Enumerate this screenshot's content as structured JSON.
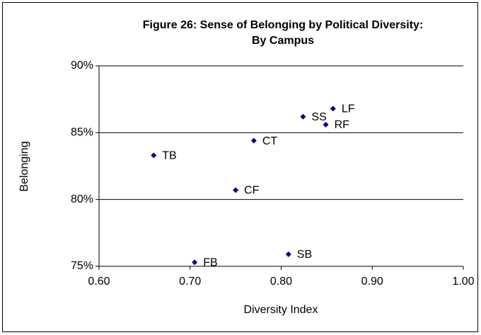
{
  "chart_data": {
    "type": "scatter",
    "title": [
      "Figure 26: Sense of Belonging by Political Diversity:",
      "By Campus"
    ],
    "x_label": "Diversity Index",
    "y_label": "Belonging",
    "labels": [
      "TB",
      "FB",
      "CF",
      "CT",
      "SB",
      "SS",
      "RF",
      "LF"
    ],
    "x": [
      0.66,
      0.705,
      0.75,
      0.77,
      0.808,
      0.824,
      0.849,
      0.857
    ],
    "values": [
      83.3,
      75.3,
      80.7,
      84.4,
      75.9,
      86.2,
      85.6,
      86.8
    ],
    "color": "#000080",
    "xlim": [
      0.6,
      1.0
    ],
    "xticks": [
      {
        "value": 0.6,
        "label": "0.60"
      },
      {
        "value": 0.7,
        "label": "0.70"
      },
      {
        "value": 0.8,
        "label": "0.80"
      },
      {
        "value": 0.9,
        "label": "0.90"
      },
      {
        "value": 1.0,
        "label": "1.00"
      }
    ],
    "ylim": [
      75,
      90
    ],
    "yticks": [
      {
        "value": 75,
        "label": "75%"
      },
      {
        "value": 80,
        "label": "80%"
      },
      {
        "value": 85,
        "label": "85%"
      },
      {
        "value": 90,
        "label": "90%"
      }
    ],
    "grid": true
  }
}
